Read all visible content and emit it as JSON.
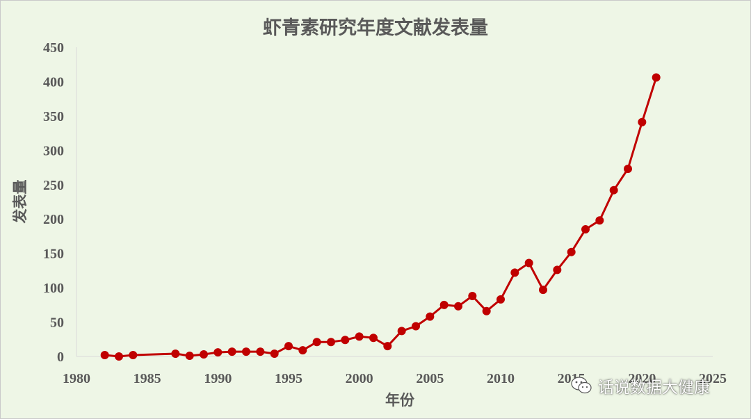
{
  "chart_data": {
    "type": "line",
    "title": "虾青素研究年度文献发表量",
    "xlabel": "年份",
    "ylabel": "发表量",
    "xlim": [
      1980,
      2025
    ],
    "ylim": [
      0,
      450
    ],
    "x_ticks": [
      "1980",
      "1985",
      "1990",
      "1995",
      "2000",
      "2005",
      "2010",
      "2015",
      "2020",
      "2025"
    ],
    "y_ticks": [
      "0",
      "50",
      "100",
      "150",
      "200",
      "250",
      "300",
      "350",
      "400",
      "450"
    ],
    "grid": false,
    "legend": "none",
    "series": [
      {
        "color": "#c00000",
        "x": [
          1982,
          1983,
          1984,
          1987,
          1988,
          1989,
          1990,
          1991,
          1992,
          1993,
          1994,
          1995,
          1996,
          1997,
          1998,
          1999,
          2000,
          2001,
          2002,
          2003,
          2004,
          2005,
          2006,
          2007,
          2008,
          2009,
          2010,
          2011,
          2012,
          2013,
          2014,
          2015,
          2016,
          2017,
          2018,
          2019,
          2020,
          2021
        ],
        "values": [
          2,
          0,
          2,
          4,
          1,
          3,
          6,
          7,
          7,
          7,
          4,
          15,
          9,
          21,
          21,
          24,
          29,
          27,
          15,
          37,
          44,
          58,
          75,
          73,
          88,
          66,
          83,
          122,
          136,
          97,
          126,
          152,
          185,
          198,
          242,
          273,
          341,
          406
        ]
      }
    ]
  },
  "watermark": {
    "icon": "wechat-icon",
    "text": "话说数据大健康"
  }
}
